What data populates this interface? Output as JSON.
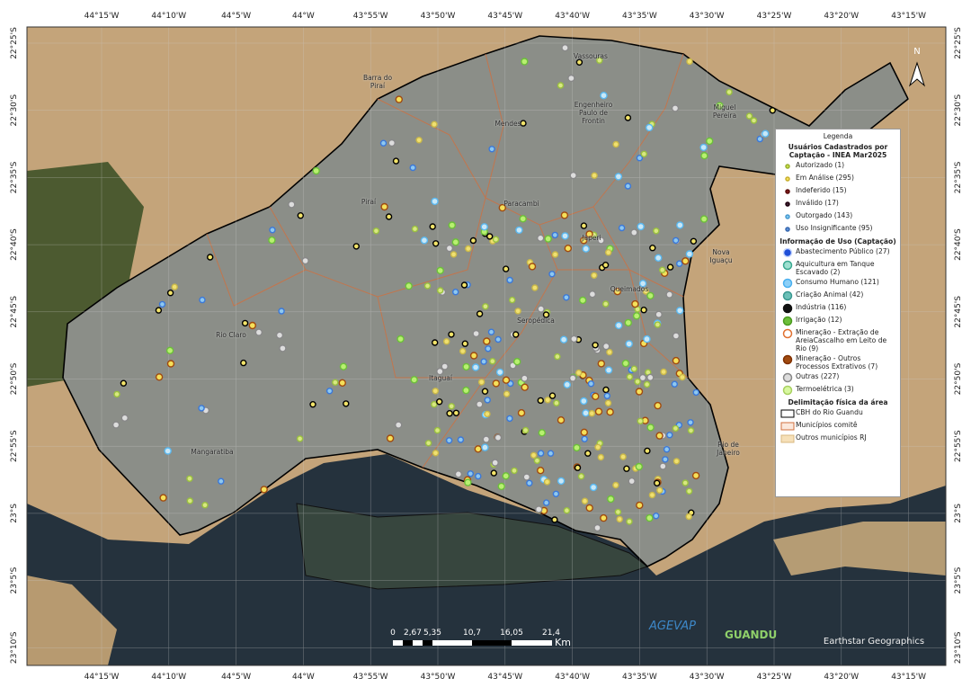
{
  "graticule": {
    "top": [
      "44°15'W",
      "44°10'W",
      "44°5'W",
      "44°W",
      "43°55'W",
      "43°50'W",
      "43°45'W",
      "43°40'W",
      "43°35'W",
      "43°30'W",
      "43°25'W",
      "43°20'W",
      "43°15'W"
    ],
    "bottom": [
      "44°15'W",
      "44°10'W",
      "44°5'W",
      "44°W",
      "43°55'W",
      "43°50'W",
      "43°45'W",
      "43°40'W",
      "43°35'W",
      "43°30'W",
      "43°25'W",
      "43°20'W",
      "43°15'W"
    ],
    "left": [
      "22°25'S",
      "22°30'S",
      "22°35'S",
      "22°40'S",
      "22°45'S",
      "22°50'S",
      "22°55'S",
      "23°S",
      "23°5'S",
      "23°10'S"
    ],
    "right": [
      "22°25'S",
      "22°30'S",
      "22°35'S",
      "22°40'S",
      "22°45'S",
      "22°50'S",
      "22°55'S",
      "23°S",
      "23°5'S",
      "23°10'S"
    ]
  },
  "places": [
    "Barra do Piraí",
    "Vassouras",
    "Engenheiro Paulo de Frontin",
    "Mendes",
    "Miguel Pereira",
    "Piraí",
    "Paracambi",
    "Japeri",
    "Nova Iguaçu",
    "Queimados",
    "Seropédica",
    "Rio Claro",
    "Itaguaí",
    "Mangaratiba",
    "Rio de Janeiro"
  ],
  "legend": {
    "title": "Legenda",
    "status_title": "Usuários Cadastrados por Captação - INEA Mar2025",
    "status": [
      "Autorizado (1)",
      "Em Análise (295)",
      "Indeferido (15)",
      "Inválido (17)",
      "Outorgado (143)",
      "Uso Insignificante (95)"
    ],
    "use_title": "Informação de Uso (Captação)",
    "use": [
      "Abastecimento Público (27)",
      "Aquicultura em Tanque Escavado (2)",
      "Consumo Humano (121)",
      "Criação Animal (42)",
      "Indústria (116)",
      "Irrigação (12)",
      "Mineração - Extração de AreiaCascalho em Leito de Rio (9)",
      "Mineração - Outros Processos Extrativos (7)",
      "Outras (227)",
      "Termoelétrica (3)"
    ],
    "area_title": "Delimitação física da área",
    "area": [
      "CBH do Rio Guandu",
      "Municípios comitê",
      "Outros municípios RJ"
    ]
  },
  "scale": {
    "labels": [
      "0",
      "2,67",
      "5,35",
      "10,7",
      "16,05",
      "21,4"
    ],
    "unit": "Km"
  },
  "north": "N",
  "logos": [
    "AGEVAP",
    "GUANDU"
  ],
  "attribution": "Earthstar Geographics"
}
